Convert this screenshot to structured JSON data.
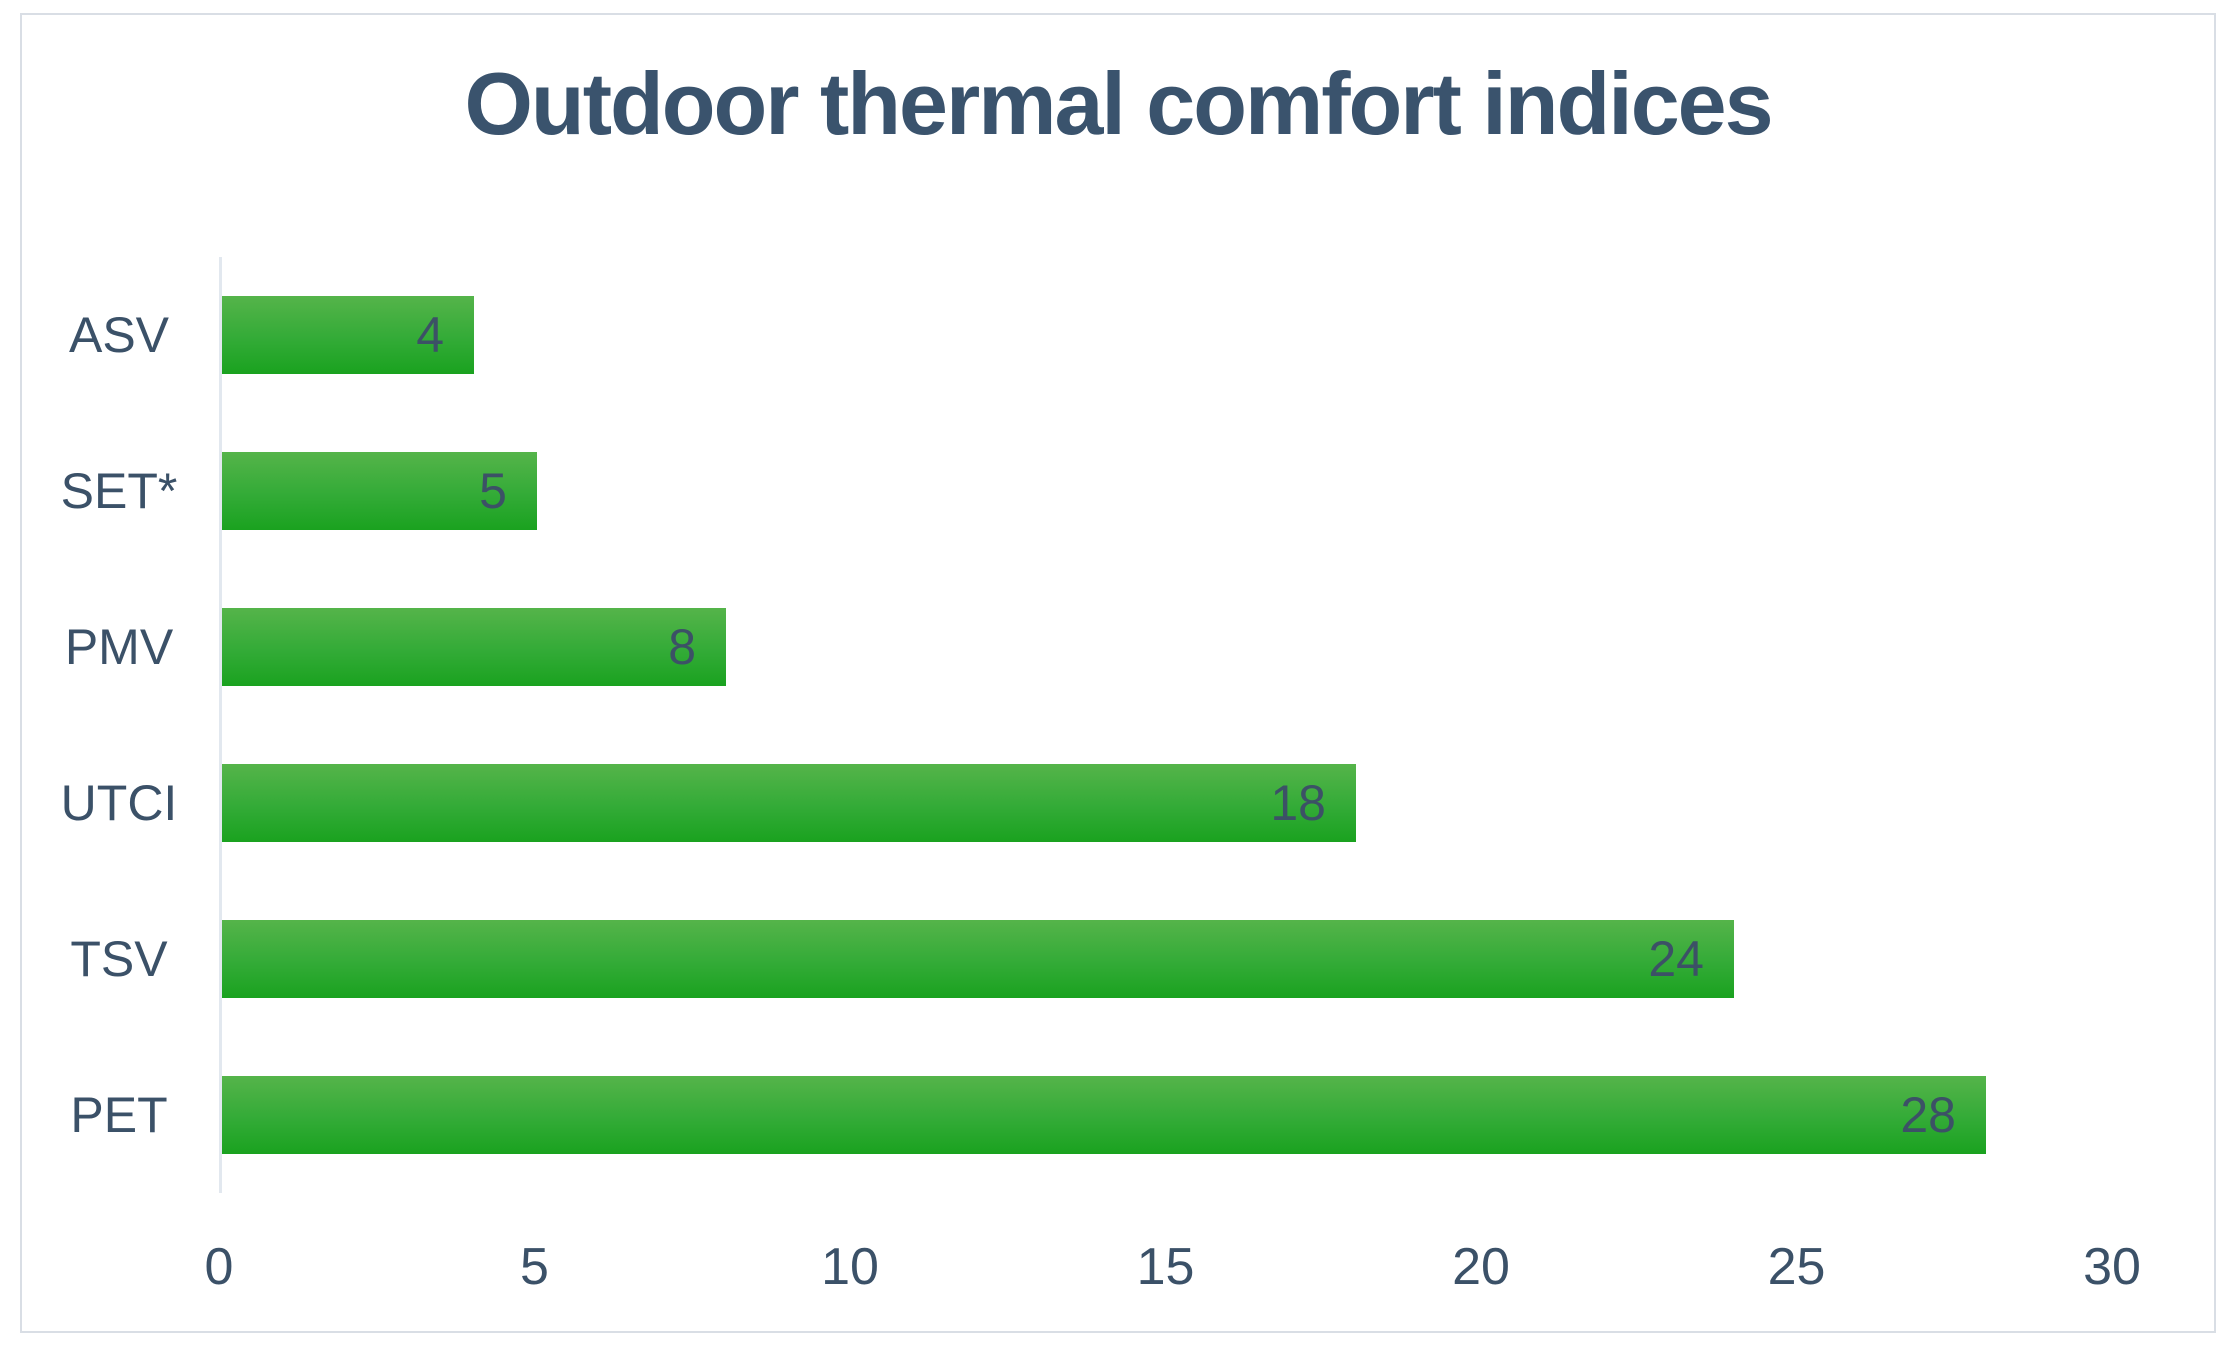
{
  "page": {
    "background": "#ffffff",
    "frame_border_color": "#d9dee5"
  },
  "chart_data": {
    "type": "bar",
    "orientation": "horizontal",
    "title": "Outdoor thermal comfort indices",
    "categories": [
      "ASV",
      "SET*",
      "PMV",
      "UTCI",
      "TSV",
      "PET"
    ],
    "values": [
      4,
      5,
      8,
      18,
      24,
      28
    ],
    "xlabel": "",
    "ylabel": "",
    "xlim": [
      0,
      30
    ],
    "x_ticks": [
      0,
      5,
      10,
      15,
      20,
      25,
      30
    ],
    "grid": "off",
    "legend": "none",
    "bar_label_position": "inside-end",
    "colors": {
      "bar_gradient_top": "#55b44a",
      "bar_gradient_mid": "#33ab37",
      "bar_gradient_bottom": "#1aa21f",
      "title_color": "#3a536d",
      "label_color": "#3b5168",
      "value_label_color": "#3c5166",
      "axis_line_color": "#e2e8ef"
    }
  }
}
